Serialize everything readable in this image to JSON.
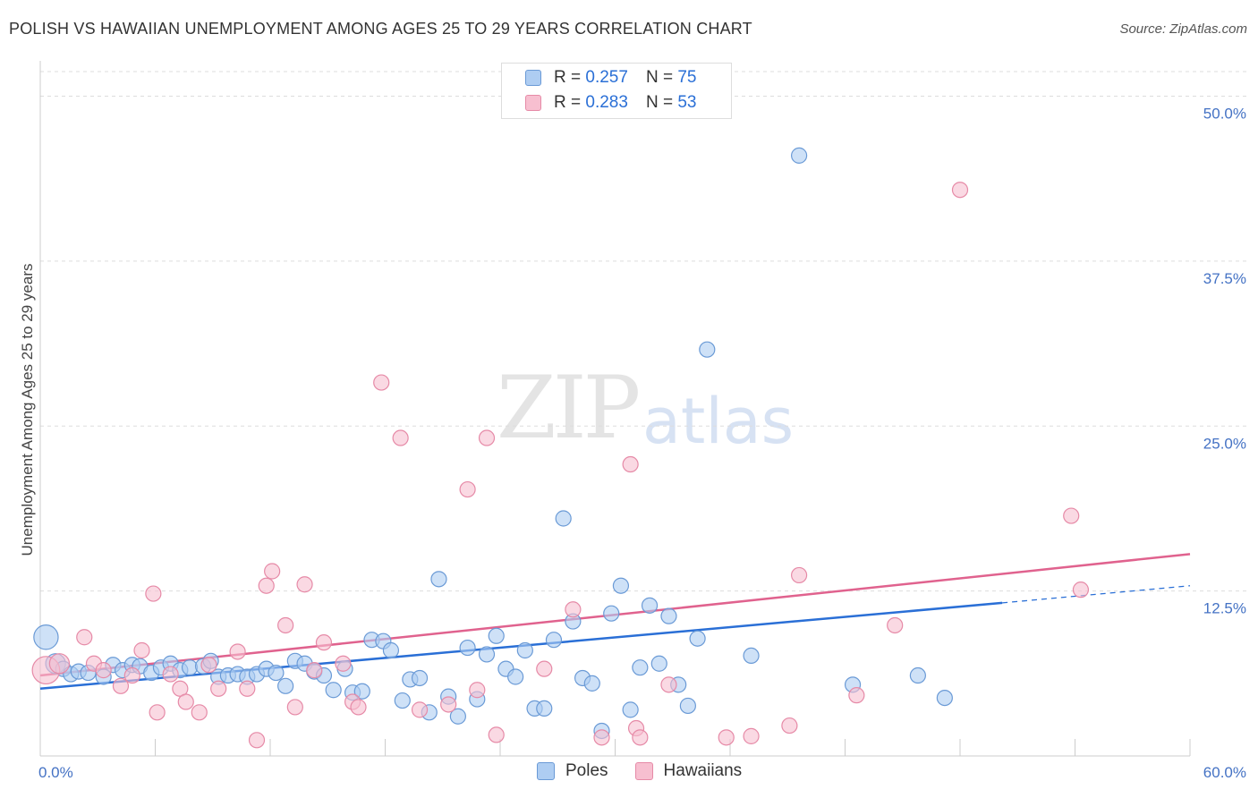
{
  "header": {
    "title": "POLISH VS HAWAIIAN UNEMPLOYMENT AMONG AGES 25 TO 29 YEARS CORRELATION CHART",
    "source": "Source: ZipAtlas.com"
  },
  "legend": {
    "rows": [
      {
        "r_label": "R =",
        "r_value": "0.257",
        "n_label": "N =",
        "n_value": "75"
      },
      {
        "r_label": "R =",
        "r_value": "0.283",
        "n_label": "N =",
        "n_value": "53"
      }
    ]
  },
  "watermark": {
    "zip": "ZIP",
    "atlas": "atlas"
  },
  "colors": {
    "poles_fill": "#aecdf2",
    "poles_stroke": "#6a9ad6",
    "poles_line": "#2a6fd6",
    "hawaiians_fill": "#f7bfd0",
    "hawaiians_stroke": "#e68aa7",
    "hawaiians_line": "#e0628e",
    "grid": "#dddddd",
    "tick_label": "#4472c4"
  },
  "chart_data": {
    "type": "scatter",
    "title": "POLISH VS HAWAIIAN UNEMPLOYMENT AMONG AGES 25 TO 29 YEARS CORRELATION CHART",
    "xlabel": "",
    "ylabel": "Unemployment Among Ages 25 to 29 years",
    "xlim": [
      0,
      60
    ],
    "ylim": [
      0,
      52
    ],
    "x_tick_labels": [
      "0.0%",
      "60.0%"
    ],
    "y_ticks": [
      12.5,
      25.0,
      37.5,
      50.0
    ],
    "y_tick_labels": [
      "12.5%",
      "25.0%",
      "37.5%",
      "50.0%"
    ],
    "grid": true,
    "legend_position": "bottom",
    "series": [
      {
        "name": "Poles",
        "R": 0.257,
        "N": 75,
        "trend": {
          "x0": 0,
          "y0": 5.1,
          "x1": 50.2,
          "y1": 11.6,
          "dash_x1": 60,
          "dash_y1": 12.9
        },
        "points": [
          [
            0.3,
            9.0,
            1.6
          ],
          [
            0.8,
            7.0,
            1.3
          ],
          [
            1.2,
            6.6,
            1.0
          ],
          [
            1.6,
            6.2,
            1.0
          ],
          [
            2.0,
            6.4,
            1.0
          ],
          [
            2.5,
            6.3,
            1.0
          ],
          [
            3.3,
            6.0,
            1.0
          ],
          [
            3.8,
            6.9,
            1.0
          ],
          [
            4.3,
            6.5,
            1.0
          ],
          [
            4.8,
            6.9,
            1.0
          ],
          [
            5.2,
            6.8,
            1.0
          ],
          [
            5.8,
            6.3,
            1.0
          ],
          [
            6.3,
            6.7,
            1.0
          ],
          [
            6.8,
            7.0,
            1.0
          ],
          [
            7.3,
            6.5,
            1.0
          ],
          [
            7.8,
            6.7,
            1.0
          ],
          [
            8.5,
            6.8,
            1.0
          ],
          [
            8.9,
            7.2,
            1.0
          ],
          [
            9.3,
            6.0,
            1.0
          ],
          [
            9.8,
            6.1,
            1.0
          ],
          [
            10.3,
            6.2,
            1.0
          ],
          [
            10.8,
            6.0,
            1.0
          ],
          [
            11.3,
            6.2,
            1.0
          ],
          [
            11.8,
            6.6,
            1.0
          ],
          [
            12.3,
            6.3,
            1.0
          ],
          [
            12.8,
            5.3,
            1.0
          ],
          [
            13.3,
            7.2,
            1.0
          ],
          [
            13.8,
            7.0,
            1.0
          ],
          [
            14.3,
            6.4,
            1.0
          ],
          [
            14.8,
            6.1,
            1.0
          ],
          [
            15.3,
            5.0,
            1.0
          ],
          [
            15.9,
            6.6,
            1.0
          ],
          [
            16.3,
            4.8,
            1.0
          ],
          [
            16.8,
            4.9,
            1.0
          ],
          [
            17.3,
            8.8,
            1.0
          ],
          [
            17.9,
            8.7,
            1.0
          ],
          [
            18.3,
            8.0,
            1.0
          ],
          [
            18.9,
            4.2,
            1.0
          ],
          [
            19.3,
            5.8,
            1.0
          ],
          [
            19.8,
            5.9,
            1.0
          ],
          [
            20.3,
            3.3,
            1.0
          ],
          [
            21.3,
            4.5,
            1.0
          ],
          [
            21.8,
            3.0,
            1.0
          ],
          [
            22.3,
            8.2,
            1.0
          ],
          [
            22.8,
            4.3,
            1.0
          ],
          [
            23.3,
            7.7,
            1.0
          ],
          [
            23.8,
            9.1,
            1.0
          ],
          [
            24.3,
            6.6,
            1.0
          ],
          [
            24.8,
            6.0,
            1.0
          ],
          [
            25.3,
            8.0,
            1.0
          ],
          [
            25.8,
            3.6,
            1.0
          ],
          [
            26.3,
            3.6,
            1.0
          ],
          [
            26.8,
            8.8,
            1.0
          ],
          [
            27.3,
            18.0,
            1.0
          ],
          [
            27.8,
            10.2,
            1.0
          ],
          [
            28.3,
            5.9,
            1.0
          ],
          [
            28.8,
            5.5,
            1.0
          ],
          [
            29.3,
            1.9,
            1.0
          ],
          [
            29.8,
            10.8,
            1.0
          ],
          [
            30.3,
            12.9,
            1.0
          ],
          [
            30.8,
            3.5,
            1.0
          ],
          [
            31.3,
            6.7,
            1.0
          ],
          [
            31.8,
            11.4,
            1.0
          ],
          [
            32.3,
            7.0,
            1.0
          ],
          [
            32.8,
            10.6,
            1.0
          ],
          [
            33.3,
            5.4,
            1.0
          ],
          [
            33.8,
            3.8,
            1.0
          ],
          [
            34.3,
            8.9,
            1.0
          ],
          [
            34.8,
            30.8,
            1.0
          ],
          [
            37.1,
            7.6,
            1.0
          ],
          [
            39.6,
            45.5,
            1.0
          ],
          [
            42.4,
            5.4,
            1.0
          ],
          [
            45.8,
            6.1,
            1.0
          ],
          [
            47.2,
            4.4,
            1.0
          ],
          [
            20.8,
            13.4,
            1.0
          ]
        ]
      },
      {
        "name": "Hawaiians",
        "R": 0.283,
        "N": 53,
        "trend": {
          "x0": 0,
          "y0": 6.1,
          "x1": 60,
          "y1": 15.3
        },
        "points": [
          [
            0.3,
            6.5,
            1.8
          ],
          [
            1.0,
            7.0,
            1.3
          ],
          [
            2.3,
            9.0,
            1.0
          ],
          [
            2.8,
            7.0,
            1.0
          ],
          [
            3.3,
            6.5,
            1.0
          ],
          [
            4.2,
            5.3,
            1.0
          ],
          [
            4.8,
            6.1,
            1.0
          ],
          [
            5.3,
            8.0,
            1.0
          ],
          [
            5.9,
            12.3,
            1.0
          ],
          [
            6.1,
            3.3,
            1.0
          ],
          [
            6.8,
            6.2,
            1.0
          ],
          [
            7.3,
            5.1,
            1.0
          ],
          [
            7.6,
            4.1,
            1.0
          ],
          [
            8.3,
            3.3,
            1.0
          ],
          [
            8.8,
            6.9,
            1.0
          ],
          [
            9.3,
            5.1,
            1.0
          ],
          [
            10.3,
            7.9,
            1.0
          ],
          [
            10.8,
            5.1,
            1.0
          ],
          [
            11.3,
            1.2,
            1.0
          ],
          [
            11.8,
            12.9,
            1.0
          ],
          [
            12.1,
            14.0,
            1.0
          ],
          [
            12.8,
            9.9,
            1.0
          ],
          [
            13.3,
            3.7,
            1.0
          ],
          [
            13.8,
            13.0,
            1.0
          ],
          [
            14.3,
            6.5,
            1.0
          ],
          [
            14.8,
            8.6,
            1.0
          ],
          [
            15.8,
            7.0,
            1.0
          ],
          [
            16.3,
            4.1,
            1.0
          ],
          [
            17.8,
            28.3,
            1.0
          ],
          [
            18.8,
            24.1,
            1.0
          ],
          [
            22.3,
            20.2,
            1.0
          ],
          [
            22.8,
            5.0,
            1.0
          ],
          [
            23.3,
            24.1,
            1.0
          ],
          [
            23.8,
            1.6,
            1.0
          ],
          [
            27.8,
            11.1,
            1.0
          ],
          [
            29.3,
            1.4,
            1.0
          ],
          [
            30.8,
            22.1,
            1.0
          ],
          [
            31.1,
            2.1,
            1.0
          ],
          [
            31.3,
            1.4,
            1.0
          ],
          [
            32.8,
            5.4,
            1.0
          ],
          [
            35.8,
            1.4,
            1.0
          ],
          [
            37.1,
            1.5,
            1.0
          ],
          [
            39.1,
            2.3,
            1.0
          ],
          [
            39.6,
            13.7,
            1.0
          ],
          [
            42.6,
            4.6,
            1.0
          ],
          [
            44.6,
            9.9,
            1.0
          ],
          [
            48.0,
            42.9,
            1.0
          ],
          [
            53.8,
            18.2,
            1.0
          ],
          [
            54.3,
            12.6,
            1.0
          ],
          [
            19.8,
            3.5,
            1.0
          ],
          [
            26.3,
            6.6,
            1.0
          ],
          [
            21.3,
            3.9,
            1.0
          ],
          [
            16.6,
            3.7,
            1.0
          ]
        ]
      }
    ]
  }
}
